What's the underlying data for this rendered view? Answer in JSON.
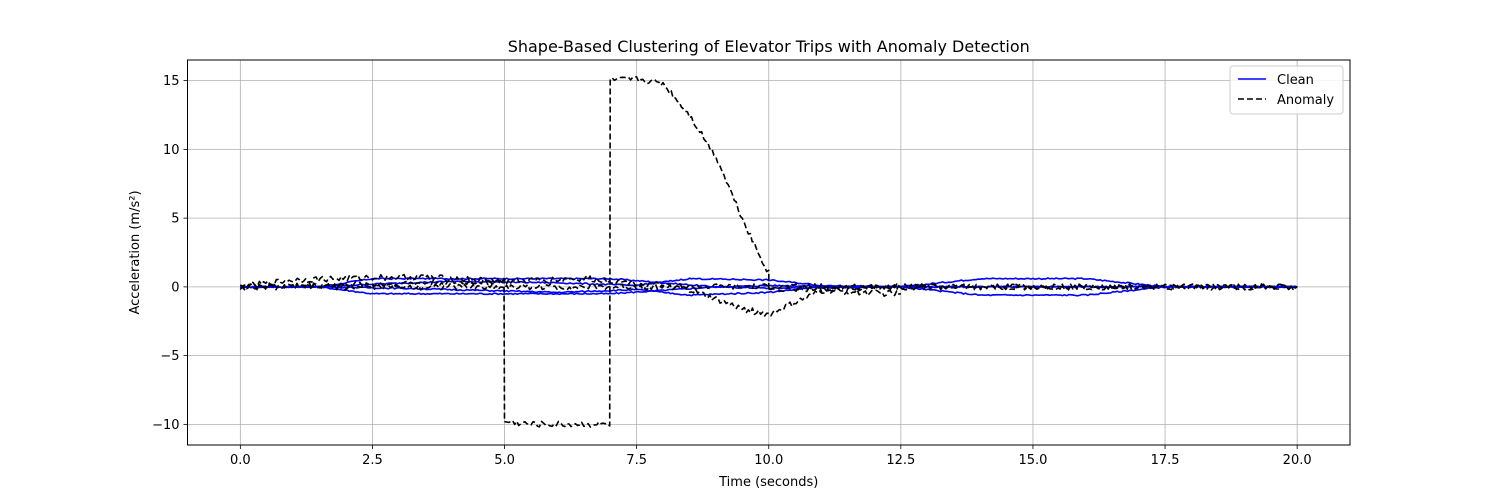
{
  "chart_data": {
    "type": "line",
    "title": "Shape-Based Clustering of Elevator Trips with Anomaly Detection",
    "xlabel": "Time (seconds)",
    "ylabel": "Acceleration (m/s²)",
    "xlim": [
      -1.0,
      21.0
    ],
    "ylim": [
      -11.5,
      16.5
    ],
    "xticks": [
      0.0,
      2.5,
      5.0,
      7.5,
      10.0,
      12.5,
      15.0,
      17.5,
      20.0
    ],
    "xtick_labels": [
      "0.0",
      "2.5",
      "5.0",
      "7.5",
      "10.0",
      "12.5",
      "15.0",
      "17.5",
      "20.0"
    ],
    "yticks": [
      -10,
      -5,
      0,
      5,
      10,
      15
    ],
    "ytick_labels": [
      "−10",
      "−5",
      "0",
      "5",
      "10",
      "15"
    ],
    "grid": true,
    "legend": {
      "placement": "top-right",
      "entries": [
        {
          "label": "Clean",
          "color": "#0000ff",
          "style": "solid"
        },
        {
          "label": "Anomaly",
          "color": "#000000",
          "style": "dashed"
        }
      ]
    },
    "series": [
      {
        "legend": "Clean",
        "color": "#0000ff",
        "style": "solid",
        "x": [
          0,
          1.5,
          2.5,
          3.5,
          5.0,
          7.0,
          9.0,
          10.0,
          12.5,
          14.0,
          16.0,
          17.5,
          20.0
        ],
        "y": [
          0,
          0,
          0.6,
          0.6,
          0.6,
          0.6,
          0,
          -0.1,
          0,
          0.6,
          0.6,
          0,
          0
        ]
      },
      {
        "legend": "Clean",
        "color": "#0000ff",
        "style": "solid",
        "x": [
          0,
          1.5,
          2.5,
          3.5,
          5.0,
          7.0,
          9.0,
          10.0,
          12.5,
          14.0,
          16.0,
          17.5,
          20.0
        ],
        "y": [
          0,
          0,
          -0.5,
          -0.5,
          -0.5,
          -0.5,
          0,
          0.1,
          0,
          -0.6,
          -0.6,
          0,
          0
        ]
      },
      {
        "legend": "Clean",
        "color": "#0000ff",
        "style": "solid",
        "x": [
          0,
          1.5,
          2.5,
          4.0,
          6.0,
          7.5,
          8.5,
          10.0,
          11.0,
          12.5,
          15.0,
          17.5,
          20.0
        ],
        "y": [
          0,
          0,
          0.2,
          0.4,
          0.3,
          0.1,
          0.6,
          0.5,
          0.1,
          0,
          0,
          0,
          0
        ]
      },
      {
        "legend": "Clean",
        "color": "#0000ff",
        "style": "solid",
        "x": [
          0,
          1.5,
          3.0,
          5.0,
          6.0,
          7.5,
          8.5,
          10.0,
          11.0,
          12.5,
          15.0,
          17.5,
          20.0
        ],
        "y": [
          0,
          0,
          -0.1,
          -0.3,
          -0.4,
          -0.2,
          -0.6,
          -0.4,
          0,
          0,
          0,
          0,
          0
        ]
      },
      {
        "legend": "Anomaly",
        "color": "#000000",
        "style": "dashed",
        "x": [
          0,
          1.0,
          2.5,
          3.5,
          4.5,
          4.99,
          5.0,
          5.5,
          6.5,
          6.99,
          7.0,
          7.5,
          8.0,
          8.5,
          9.0,
          9.5,
          9.8,
          10.0,
          10.0,
          11.0,
          12.5,
          15.0,
          17.5,
          20.0
        ],
        "y": [
          0,
          0.5,
          0.7,
          0.7,
          0.5,
          0.5,
          -9.8,
          -10.0,
          -10.0,
          -10.0,
          15.0,
          15.1,
          14.8,
          12.5,
          9.5,
          5.0,
          2.5,
          1.0,
          -0.1,
          -0.2,
          0,
          0,
          0,
          0
        ]
      },
      {
        "legend": "Anomaly",
        "color": "#000000",
        "style": "dashed",
        "x": [
          0,
          2.5,
          5.0,
          6.5,
          7.5,
          8.5,
          9.0,
          9.5,
          10.0,
          11.0,
          12.5
        ],
        "y": [
          0,
          0.2,
          0.4,
          0.6,
          0.3,
          -0.2,
          -0.9,
          -1.6,
          -2.0,
          -0.3,
          -0.5
        ]
      },
      {
        "legend": "Anomaly",
        "color": "#000000",
        "style": "dashed",
        "x": [
          0,
          2.5,
          5.0,
          7.5,
          10.0,
          12.5,
          15.0,
          17.5,
          20.0
        ],
        "y": [
          0,
          0,
          0,
          0,
          0,
          0,
          0,
          0,
          0
        ]
      }
    ]
  }
}
